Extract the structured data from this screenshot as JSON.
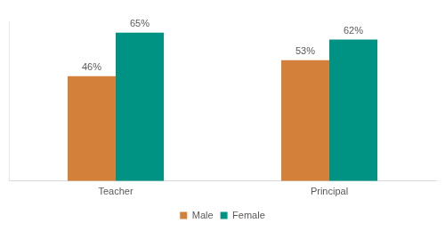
{
  "chart_data": {
    "type": "bar",
    "categories": [
      "Teacher",
      "Principal"
    ],
    "series": [
      {
        "name": "Male",
        "color": "#d2803a",
        "values": [
          46,
          53
        ],
        "value_labels": [
          "46%",
          "53%"
        ]
      },
      {
        "name": "Female",
        "color": "#009384",
        "values": [
          65,
          62
        ],
        "value_labels": [
          "65%",
          "62%"
        ]
      }
    ],
    "ylim": [
      0,
      70
    ],
    "grid": false,
    "legend": "bottom",
    "data_labels": true,
    "tick_labels": "x"
  }
}
